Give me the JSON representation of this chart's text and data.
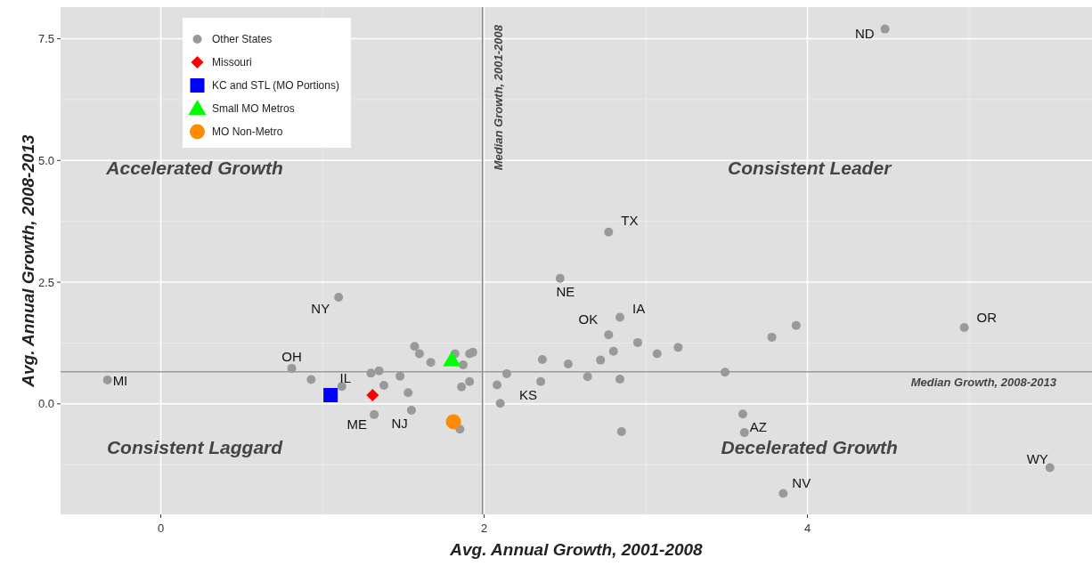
{
  "chart_data": {
    "type": "scatter",
    "xlabel": "Avg. Annual Growth, 2001-2008",
    "ylabel": "Avg. Annual Growth, 2008-2013",
    "xlim": [
      -0.62,
      5.76
    ],
    "ylim": [
      -2.27,
      8.15
    ],
    "xticks": [
      0,
      2,
      4
    ],
    "yticks": [
      {
        "value": 0,
        "label": "0.0"
      },
      {
        "value": 2.5,
        "label": "2.5"
      },
      {
        "value": 5,
        "label": "5.0"
      },
      {
        "value": 7.5,
        "label": "7.5"
      }
    ],
    "grid": true,
    "legend": "top left",
    "series": [
      {
        "name": "Other States",
        "color": "#999999",
        "marker": "circle",
        "x": [
          0.81,
          0.93,
          1.12,
          1.3,
          1.35,
          1.38,
          1.32,
          1.48,
          1.53,
          1.55,
          1.57,
          1.6,
          1.67,
          1.82,
          1.87,
          1.86,
          1.91,
          1.91,
          1.93,
          1.85,
          2.08,
          2.14,
          2.1,
          2.36,
          2.35,
          2.52,
          2.64,
          2.72,
          2.8,
          2.77,
          2.84,
          2.84,
          2.95,
          3.07,
          3.2,
          2.85,
          3.49,
          3.78,
          3.93,
          3.6,
          3.61,
          3.85,
          4.97,
          5.5,
          -0.33,
          1.1,
          2.47,
          2.77,
          4.48
        ],
        "values": [
          0.73,
          0.5,
          0.36,
          0.63,
          0.68,
          0.38,
          -0.22,
          0.57,
          0.23,
          -0.13,
          1.18,
          1.03,
          0.85,
          1.03,
          0.8,
          0.35,
          0.46,
          1.03,
          1.06,
          -0.52,
          0.39,
          0.62,
          0.01,
          0.91,
          0.46,
          0.82,
          0.56,
          0.9,
          1.08,
          1.42,
          1.78,
          0.51,
          1.26,
          1.03,
          1.16,
          -0.57,
          0.65,
          1.37,
          1.61,
          -0.21,
          -0.59,
          -1.84,
          1.57,
          -1.31,
          0.49,
          2.19,
          2.58,
          3.53,
          7.7
        ]
      },
      {
        "name": "Missouri",
        "color": "#ff0000",
        "marker": "diamond",
        "x": [
          1.31
        ],
        "values": [
          0.18
        ]
      },
      {
        "name": "KC and STL (MO Portions)",
        "color": "#0000ff",
        "marker": "square",
        "x": [
          1.05
        ],
        "values": [
          0.18
        ]
      },
      {
        "name": "Small MO Metros",
        "color": "#00ff00",
        "marker": "triangle",
        "x": [
          1.8
        ],
        "values": [
          0.9
        ]
      },
      {
        "name": "MO Non-Metro",
        "color": "#ff8c00",
        "marker": "circle",
        "x": [
          1.81
        ],
        "values": [
          -0.37
        ]
      }
    ],
    "ref_lines": [
      {
        "axis": "x",
        "value": 1.99,
        "label": "Median Growth, 2001-2008",
        "color": "#777777"
      },
      {
        "axis": "y",
        "value": 0.66,
        "label": "Median Growth, 2008-2013",
        "color": "#999999"
      }
    ],
    "annotations": [
      "Accelerated Growth",
      "Consistent Leader",
      "Consistent Laggard",
      "Decelerated Growth",
      {
        "text": "ND",
        "x": 4.48,
        "y": 7.7
      },
      {
        "text": "TX",
        "x": 2.77,
        "y": 3.53
      },
      {
        "text": "NE",
        "x": 2.47,
        "y": 2.58
      },
      {
        "text": "NY",
        "x": 1.1,
        "y": 2.19
      },
      {
        "text": "OR",
        "x": 4.97,
        "y": 1.57
      },
      {
        "text": "IA",
        "x": 2.84,
        "y": 1.78
      },
      {
        "text": "OK",
        "x": 2.77,
        "y": 1.42
      },
      {
        "text": "OH",
        "x": 0.81,
        "y": 0.73
      },
      {
        "text": "IL",
        "x": 1.12,
        "y": 0.36
      },
      {
        "text": "MI",
        "x": -0.33,
        "y": 0.49
      },
      {
        "text": "KS",
        "x": 2.35,
        "y": 0.46
      },
      {
        "text": "ME",
        "x": 1.32,
        "y": -0.22
      },
      {
        "text": "NJ",
        "x": 1.55,
        "y": -0.13
      },
      {
        "text": "AZ",
        "x": 3.61,
        "y": -0.59
      },
      {
        "text": "WY",
        "x": 5.5,
        "y": -1.31
      },
      {
        "text": "NV",
        "x": 3.85,
        "y": -1.84
      }
    ]
  }
}
